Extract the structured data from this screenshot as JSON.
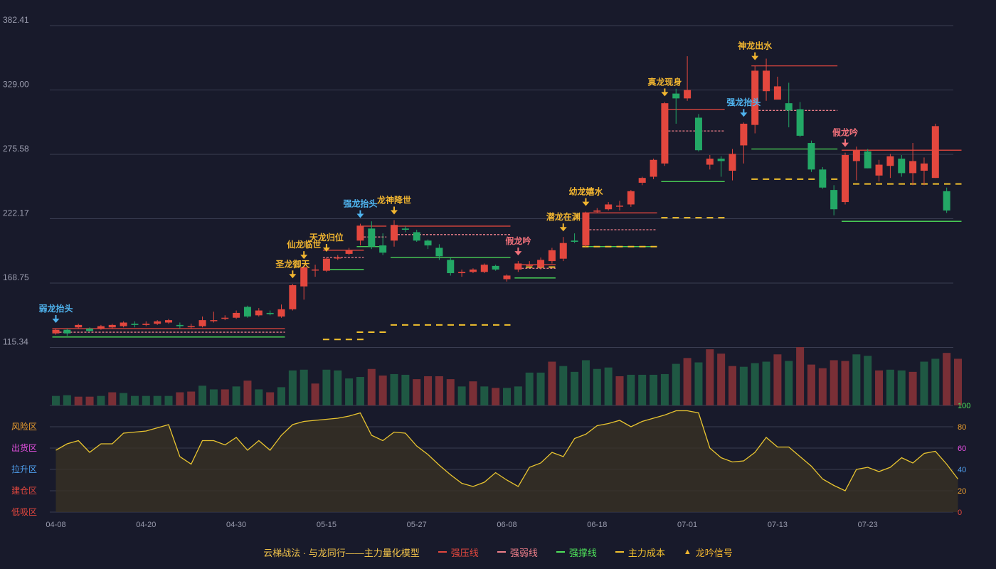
{
  "colors": {
    "background": "#181a2b",
    "up": "#e3473e",
    "down": "#23a866",
    "up_volume": "#7a2f36",
    "down_volume": "#1f5843",
    "strong_pressure": "#e3473e",
    "strong_weak": "#ee7f8a",
    "strong_support": "#4ee25a",
    "main_cost": "#f2c12e",
    "signal_gold": "#f2b630",
    "signal_blue": "#4fb4ef",
    "signal_pink": "#f0707a",
    "risk_line": "#e8c430",
    "grid": "#3a3d52",
    "axis_text": "#9a9cae"
  },
  "legend": {
    "title": "云梯战法 · 与龙同行——主力量化模型",
    "items": [
      {
        "label": "强压线",
        "color": "#e3473e",
        "style": "solid"
      },
      {
        "label": "强弱线",
        "color": "#ee7f8a",
        "style": "dashed"
      },
      {
        "label": "强撑线",
        "color": "#4ee25a",
        "style": "solid"
      },
      {
        "label": "主力成本",
        "color": "#f2c12e",
        "style": "dashed"
      },
      {
        "label": "龙吟信号",
        "color": "#f2b630",
        "style": "triangle"
      }
    ]
  },
  "chart_data": {
    "type": "candlestick",
    "price_axis": {
      "ticks": [
        "382.41",
        "329.00",
        "275.58",
        "222.17",
        "168.75",
        "115.34"
      ],
      "range": [
        115.34,
        382.41
      ]
    },
    "x_tick_labels": [
      {
        "index": 0,
        "label": "04-08"
      },
      {
        "index": 8,
        "label": "04-20"
      },
      {
        "index": 16,
        "label": "04-30"
      },
      {
        "index": 24,
        "label": "05-15"
      },
      {
        "index": 32,
        "label": "05-27"
      },
      {
        "index": 40,
        "label": "06-08"
      },
      {
        "index": 48,
        "label": "06-18"
      },
      {
        "index": 56,
        "label": "07-01"
      },
      {
        "index": 64,
        "label": "07-13"
      },
      {
        "index": 72,
        "label": "07-23"
      }
    ],
    "candles": [
      [
        127,
        130,
        126,
        131
      ],
      [
        130,
        127,
        125,
        131
      ],
      [
        132,
        134,
        131,
        135
      ],
      [
        131,
        129,
        128,
        132
      ],
      [
        131,
        133,
        130,
        134
      ],
      [
        132,
        134,
        131,
        135
      ],
      [
        133,
        136,
        132,
        137
      ],
      [
        135,
        134,
        132,
        137
      ],
      [
        134,
        135,
        133,
        137
      ],
      [
        135,
        137,
        134,
        138
      ],
      [
        136,
        138,
        135,
        139
      ],
      [
        134,
        133,
        131,
        136
      ],
      [
        133,
        133,
        131,
        135
      ],
      [
        133,
        138,
        132,
        141
      ],
      [
        138,
        138,
        136,
        145
      ],
      [
        140,
        140,
        138,
        142
      ],
      [
        140,
        144,
        139,
        146
      ],
      [
        149,
        141,
        140,
        150
      ],
      [
        142,
        146,
        141,
        148
      ],
      [
        144,
        143,
        142,
        146
      ],
      [
        141,
        147,
        140,
        151
      ],
      [
        147,
        167,
        146,
        168
      ],
      [
        166,
        182,
        155,
        184
      ],
      [
        180,
        180,
        174,
        184
      ],
      [
        179,
        189,
        178,
        190
      ],
      [
        190,
        190,
        188,
        192
      ],
      [
        193,
        196,
        192,
        198
      ],
      [
        204,
        216,
        200,
        218
      ],
      [
        214,
        199,
        197,
        220
      ],
      [
        200,
        194,
        192,
        210
      ],
      [
        204,
        217,
        199,
        221
      ],
      [
        214,
        213,
        211,
        216
      ],
      [
        211,
        204,
        203,
        213
      ],
      [
        204,
        200,
        197,
        205
      ],
      [
        198,
        191,
        188,
        201
      ],
      [
        188,
        177,
        175,
        190
      ],
      [
        177,
        178,
        174,
        180
      ],
      [
        178,
        180,
        177,
        181
      ],
      [
        178,
        184,
        177,
        185
      ],
      [
        183,
        180,
        179,
        184
      ],
      [
        172,
        175,
        170,
        176
      ],
      [
        180,
        185,
        178,
        187
      ],
      [
        183,
        184,
        182,
        187
      ],
      [
        182,
        188,
        180,
        190
      ],
      [
        187,
        196,
        185,
        198
      ],
      [
        189,
        202,
        187,
        207
      ],
      [
        204,
        203,
        202,
        210
      ],
      [
        200,
        227,
        199,
        228
      ],
      [
        228,
        229,
        227,
        231
      ],
      [
        230,
        234,
        229,
        236
      ],
      [
        233,
        233,
        229,
        237
      ],
      [
        234,
        245,
        232,
        246
      ],
      [
        252,
        256,
        250,
        257
      ],
      [
        257,
        271,
        255,
        272
      ],
      [
        268,
        318,
        266,
        319
      ],
      [
        326,
        322,
        301,
        330
      ],
      [
        322,
        329,
        320,
        357
      ],
      [
        306,
        279,
        278,
        309
      ],
      [
        267,
        272,
        263,
        275
      ],
      [
        272,
        270,
        257,
        274
      ],
      [
        262,
        276,
        254,
        280
      ],
      [
        283,
        301,
        268,
        302
      ],
      [
        300,
        345,
        293,
        349
      ],
      [
        328,
        345,
        320,
        355
      ],
      [
        321,
        332,
        323,
        340
      ],
      [
        318,
        312,
        298,
        335
      ],
      [
        313,
        291,
        290,
        319
      ],
      [
        285,
        263,
        261,
        287
      ],
      [
        263,
        248,
        247,
        265
      ],
      [
        246,
        230,
        225,
        250
      ],
      [
        236,
        275,
        234,
        277
      ],
      [
        270,
        279,
        254,
        282
      ],
      [
        278,
        264,
        264,
        280
      ],
      [
        258,
        267,
        253,
        271
      ],
      [
        266,
        274,
        256,
        276
      ],
      [
        272,
        260,
        257,
        275
      ],
      [
        260,
        270,
        250,
        285
      ],
      [
        262,
        268,
        250,
        273
      ],
      [
        256,
        299,
        256,
        301
      ],
      [
        245,
        229,
        227,
        248
      ]
    ],
    "volume": [
      [
        13,
        "d"
      ],
      [
        14,
        "d"
      ],
      [
        12,
        "u"
      ],
      [
        12,
        "u"
      ],
      [
        13,
        "d"
      ],
      [
        18,
        "u"
      ],
      [
        17,
        "d"
      ],
      [
        13,
        "d"
      ],
      [
        13,
        "d"
      ],
      [
        13,
        "d"
      ],
      [
        13,
        "d"
      ],
      [
        18,
        "u"
      ],
      [
        19,
        "u"
      ],
      [
        27,
        "d"
      ],
      [
        22,
        "d"
      ],
      [
        22,
        "u"
      ],
      [
        26,
        "d"
      ],
      [
        34,
        "u"
      ],
      [
        22,
        "d"
      ],
      [
        18,
        "u"
      ],
      [
        25,
        "d"
      ],
      [
        48,
        "d"
      ],
      [
        49,
        "d"
      ],
      [
        30,
        "u"
      ],
      [
        49,
        "d"
      ],
      [
        48,
        "d"
      ],
      [
        37,
        "d"
      ],
      [
        39,
        "d"
      ],
      [
        50,
        "u"
      ],
      [
        41,
        "u"
      ],
      [
        43,
        "d"
      ],
      [
        42,
        "d"
      ],
      [
        36,
        "u"
      ],
      [
        40,
        "u"
      ],
      [
        40,
        "u"
      ],
      [
        36,
        "u"
      ],
      [
        26,
        "d"
      ],
      [
        33,
        "u"
      ],
      [
        26,
        "d"
      ],
      [
        24,
        "u"
      ],
      [
        24,
        "d"
      ],
      [
        26,
        "d"
      ],
      [
        45,
        "d"
      ],
      [
        45,
        "d"
      ],
      [
        60,
        "u"
      ],
      [
        54,
        "d"
      ],
      [
        46,
        "d"
      ],
      [
        62,
        "d"
      ],
      [
        50,
        "d"
      ],
      [
        52,
        "d"
      ],
      [
        40,
        "u"
      ],
      [
        42,
        "d"
      ],
      [
        42,
        "d"
      ],
      [
        42,
        "d"
      ],
      [
        43,
        "d"
      ],
      [
        57,
        "d"
      ],
      [
        65,
        "u"
      ],
      [
        59,
        "d"
      ],
      [
        77,
        "u"
      ],
      [
        71,
        "u"
      ],
      [
        54,
        "u"
      ],
      [
        53,
        "d"
      ],
      [
        58,
        "d"
      ],
      [
        60,
        "d"
      ],
      [
        70,
        "u"
      ],
      [
        61,
        "d"
      ],
      [
        80,
        "u"
      ],
      [
        56,
        "u"
      ],
      [
        51,
        "u"
      ],
      [
        62,
        "u"
      ],
      [
        61,
        "u"
      ],
      [
        70,
        "d"
      ],
      [
        68,
        "d"
      ],
      [
        48,
        "u"
      ],
      [
        49,
        "d"
      ],
      [
        48,
        "d"
      ],
      [
        46,
        "u"
      ],
      [
        60,
        "d"
      ],
      [
        64,
        "d"
      ],
      [
        72,
        "u"
      ],
      [
        64,
        "u"
      ]
    ],
    "indicator": {
      "axis_ticks": [
        "100",
        "80",
        "60",
        "40",
        "20",
        "0"
      ],
      "zones": [
        "风险区",
        "出货区",
        "拉升区",
        "建仓区",
        "低吸区"
      ],
      "values": [
        58,
        64,
        67,
        56,
        64,
        64,
        74,
        75,
        76,
        79,
        82,
        52,
        45,
        67,
        67,
        63,
        70,
        58,
        67,
        58,
        72,
        82,
        85,
        86,
        87,
        88,
        90,
        93,
        72,
        67,
        75,
        74,
        62,
        54,
        44,
        35,
        27,
        24,
        28,
        37,
        30,
        24,
        42,
        46,
        56,
        52,
        69,
        73,
        81,
        83,
        86,
        80,
        85,
        88,
        91,
        95,
        95,
        93,
        60,
        51,
        47,
        48,
        56,
        70,
        61,
        61,
        52,
        43,
        31,
        25,
        20,
        40,
        42,
        38,
        42,
        51,
        46,
        55,
        57,
        45,
        31
      ]
    },
    "signals": [
      {
        "index": 0,
        "label": "弱龙抬头",
        "kind": "blue"
      },
      {
        "index": 21,
        "label": "圣龙御天",
        "kind": "gold"
      },
      {
        "index": 22,
        "label": "仙龙临世",
        "kind": "gold"
      },
      {
        "index": 24,
        "label": "天龙归位",
        "kind": "gold"
      },
      {
        "index": 27,
        "label": "强龙抬头",
        "kind": "blue"
      },
      {
        "index": 30,
        "label": "龙神降世",
        "kind": "gold"
      },
      {
        "index": 41,
        "label": "假龙吟",
        "kind": "pink"
      },
      {
        "index": 45,
        "label": "潜龙在渊",
        "kind": "gold"
      },
      {
        "index": 47,
        "label": "幼龙嬉水",
        "kind": "gold"
      },
      {
        "index": 54,
        "label": "真龙现身",
        "kind": "gold"
      },
      {
        "index": 61,
        "label": "强龙抬头",
        "kind": "blue"
      },
      {
        "index": 62,
        "label": "神龙出水",
        "kind": "gold"
      },
      {
        "index": 70,
        "label": "假龙吟",
        "kind": "pink"
      }
    ]
  }
}
